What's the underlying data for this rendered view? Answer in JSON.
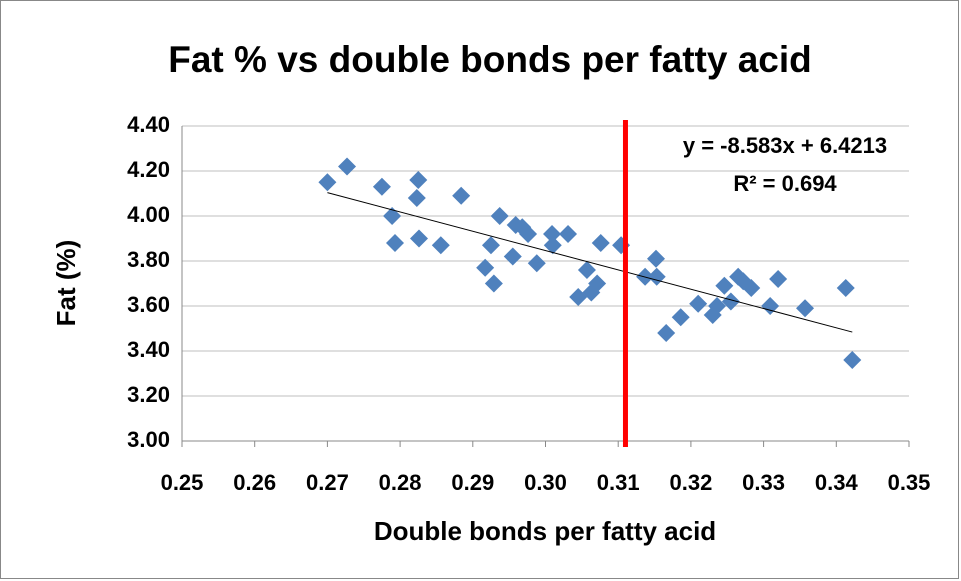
{
  "chart_data": {
    "type": "scatter",
    "title": "Fat % vs double bonds per fatty acid",
    "x_label": "Double bonds per fatty acid",
    "y_label": "Fat (%)",
    "color": "#4f81bd",
    "x": [
      0.27,
      0.2727,
      0.2775,
      0.2789,
      0.2793,
      0.2825,
      0.2823,
      0.2826,
      0.2856,
      0.2884,
      0.2917,
      0.2925,
      0.2929,
      0.2937,
      0.2955,
      0.2959,
      0.2968,
      0.2976,
      0.2988,
      0.3009,
      0.301,
      0.3031,
      0.3045,
      0.3057,
      0.3063,
      0.3071,
      0.3076,
      0.3104,
      0.3137,
      0.3152,
      0.3153,
      0.3166,
      0.3186,
      0.321,
      0.323,
      0.3236,
      0.3246,
      0.3255,
      0.3265,
      0.3272,
      0.3283,
      0.3309,
      0.332,
      0.3357,
      0.3413,
      0.3422
    ],
    "values": [
      4.15,
      4.22,
      4.13,
      4.0,
      3.88,
      4.16,
      4.08,
      3.9,
      3.87,
      4.09,
      3.77,
      3.87,
      3.7,
      4.0,
      3.82,
      3.96,
      3.95,
      3.92,
      3.79,
      3.92,
      3.87,
      3.92,
      3.64,
      3.76,
      3.66,
      3.7,
      3.88,
      3.87,
      3.73,
      3.81,
      3.73,
      3.48,
      3.55,
      3.61,
      3.56,
      3.6,
      3.69,
      3.62,
      3.73,
      3.71,
      3.68,
      3.6,
      3.72,
      3.59,
      3.68,
      3.36
    ],
    "xlim": [
      0.25,
      0.35
    ],
    "xticks": [
      0.25,
      0.26,
      0.27,
      0.28,
      0.29,
      {
        "value": 0.3,
        "label": "0.30"
      },
      0.31,
      0.32,
      0.33,
      0.34,
      0.35
    ],
    "ylim": [
      3.0,
      4.4
    ],
    "yticks": [
      {
        "value": 3.0,
        "label": "3.00"
      },
      {
        "value": 3.2,
        "label": "3.20"
      },
      {
        "value": 3.4,
        "label": "3.40"
      },
      {
        "value": 3.6,
        "label": "3.60"
      },
      {
        "value": 3.8,
        "label": "3.80"
      },
      {
        "value": 4.0,
        "label": "4.00"
      },
      {
        "value": 4.2,
        "label": "4.20"
      },
      {
        "value": 4.4,
        "label": "4.40"
      }
    ],
    "grid": true,
    "trendline": {
      "slope": -8.583,
      "intercept": 6.4213
    },
    "equation": "y = -8.583x + 6.4213",
    "r_squared": "R² = 0.694",
    "vline": {
      "x": 0.311,
      "color": "#ff0000"
    }
  }
}
